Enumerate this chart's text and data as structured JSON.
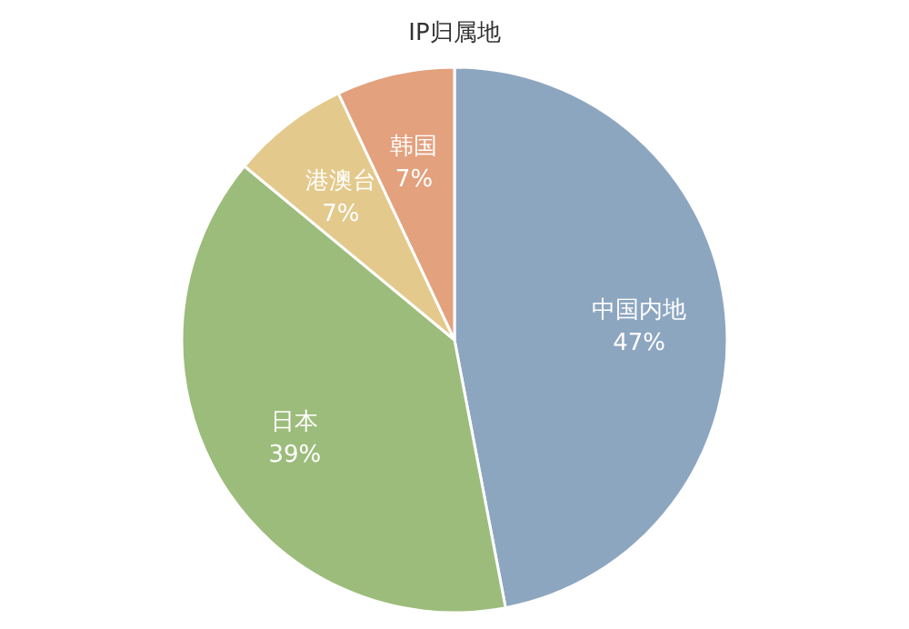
{
  "chart_data": {
    "type": "pie",
    "title": "IP归属地",
    "categories": [
      "中国内地",
      "日本",
      "港澳台",
      "韩国"
    ],
    "values": [
      47,
      39,
      7,
      7
    ],
    "value_labels": [
      "47%",
      "39%",
      "7%",
      "7%"
    ],
    "colors": [
      "#8da6c0",
      "#9cbc7b",
      "#e3c98b",
      "#e3a17e"
    ]
  }
}
